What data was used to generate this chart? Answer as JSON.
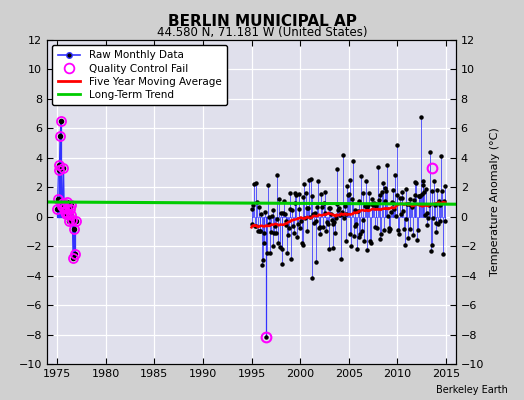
{
  "title": "BERLIN MUNICIPAL AP",
  "subtitle": "44.580 N, 71.181 W (United States)",
  "ylabel_right": "Temperature Anomaly (°C)",
  "credit": "Berkeley Earth",
  "xlim": [
    1974,
    2016
  ],
  "ylim": [
    -10,
    12
  ],
  "yticks": [
    -10,
    -8,
    -6,
    -4,
    -2,
    0,
    2,
    4,
    6,
    8,
    10,
    12
  ],
  "xticks": [
    1975,
    1980,
    1985,
    1990,
    1995,
    2000,
    2005,
    2010,
    2015
  ],
  "fig_bg_color": "#d0d0d0",
  "plot_bg_color": "#e0e0ec",
  "grid_color": "#ffffff",
  "raw_line_color": "#3333ff",
  "raw_dot_color": "#000000",
  "qc_color": "#ff00ff",
  "moving_avg_color": "#ff0000",
  "trend_color": "#00cc00",
  "early_years": [
    1975.0,
    1975.0833,
    1975.1667,
    1975.25,
    1975.3333,
    1975.4167,
    1975.5,
    1975.5833,
    1975.6667,
    1975.75,
    1975.8333,
    1975.9167,
    1976.0,
    1976.0833,
    1976.1667,
    1976.25,
    1976.3333,
    1976.4167,
    1976.5,
    1976.5833,
    1976.6667,
    1976.75,
    1976.8333,
    1976.9167
  ],
  "early_vals": [
    0.5,
    1.2,
    3.5,
    3.2,
    5.5,
    6.5,
    0.7,
    0.9,
    3.3,
    0.6,
    0.3,
    0.2,
    1.0,
    0.5,
    0.2,
    -0.3,
    0.5,
    0.8,
    0.1,
    -0.2,
    -2.8,
    -0.8,
    -2.5,
    -0.3
  ],
  "long_term_trend_x": [
    1974,
    2016
  ],
  "long_term_trend_y": [
    1.0,
    0.85
  ],
  "qc_outlier_x": 1996.5,
  "qc_outlier_y": -8.2,
  "qc_late_x": 2013.5,
  "qc_late_y": 3.3
}
